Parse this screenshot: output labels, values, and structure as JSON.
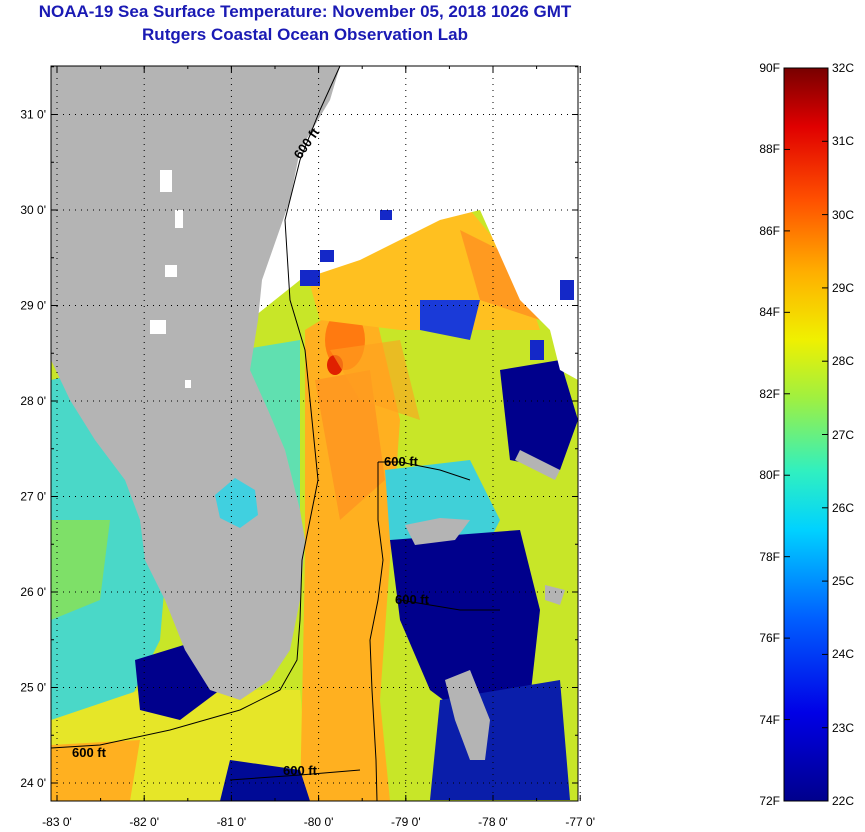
{
  "header": {
    "title": "NOAA-19 Sea Surface Temperature:  November 05, 2018 1026 GMT",
    "subtitle": "Rutgers Coastal Ocean Observation Lab"
  },
  "map": {
    "lat_labels": [
      "31 0'",
      "30 0'",
      "29 0'",
      "28 0'",
      "27 0'",
      "26 0'",
      "25 0'",
      "24 0'"
    ],
    "lon_labels": [
      "-83 0'",
      "-82 0'",
      "-81 0'",
      "-80 0'",
      "-79 0'",
      "-78 0'",
      "-77 0'"
    ],
    "isobath_labels": [
      "600 ft",
      "600 ft",
      "600 ft",
      "600 ft",
      "600 ft"
    ],
    "colors": {
      "land": "#b4b4b4",
      "cloud": "#ffffff",
      "isobath": "#000000"
    }
  },
  "colorbar": {
    "fahrenheit": [
      "90F",
      "88F",
      "86F",
      "84F",
      "82F",
      "80F",
      "78F",
      "76F",
      "74F",
      "72F"
    ],
    "celsius": [
      "32C",
      "31C",
      "30C",
      "29C",
      "28C",
      "27C",
      "26C",
      "25C",
      "24C",
      "23C",
      "22C"
    ]
  }
}
